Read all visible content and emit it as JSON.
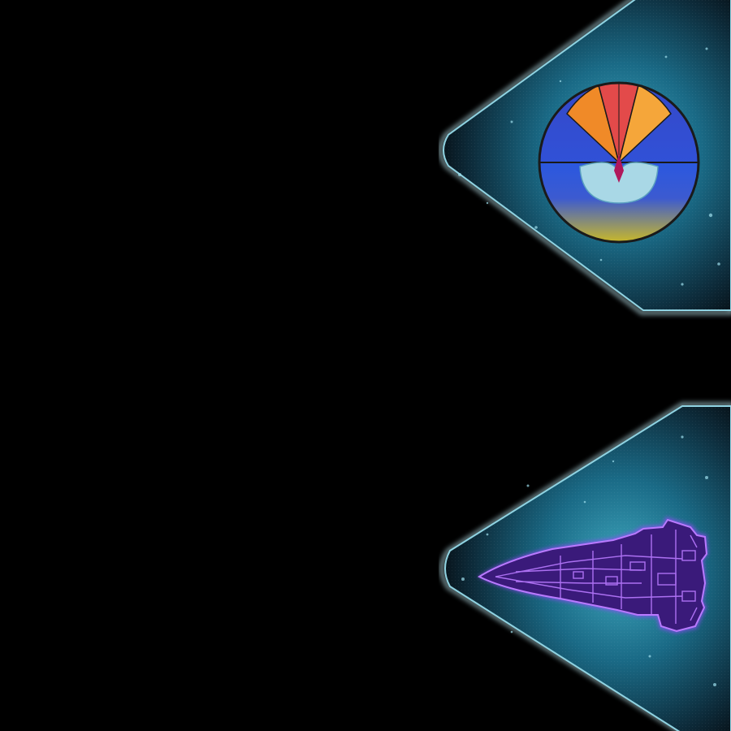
{
  "board": {
    "background": "#000000"
  },
  "tokens": [
    {
      "id": "faction-token",
      "kind": "hex-token",
      "emblem": "faction-emblem",
      "panel_colors": {
        "core": "#3fa8bf",
        "mid": "#14506a",
        "edge": "#0a1c26",
        "border": "#bfe9f2"
      },
      "emblem_colors": {
        "rays": [
          "#f08a28",
          "#e34a4a",
          "#f5a63a"
        ],
        "upper_bg": "#3550d8",
        "lower_top": "#2a58e0",
        "lower_bottom": "#c8b82a",
        "outline": "#1a1a1a",
        "leaf": "#a9d8e6"
      }
    },
    {
      "id": "ship-token",
      "kind": "hex-token",
      "emblem": "starship-miniature",
      "panel_colors": {
        "core": "#3fa8bf",
        "mid": "#14506a",
        "edge": "#0a1c26",
        "border": "#bfe9f2"
      },
      "ship_colors": {
        "hull": "#3a1a7a",
        "glow": "#9a45ff",
        "detail": "#b97aff"
      }
    }
  ]
}
